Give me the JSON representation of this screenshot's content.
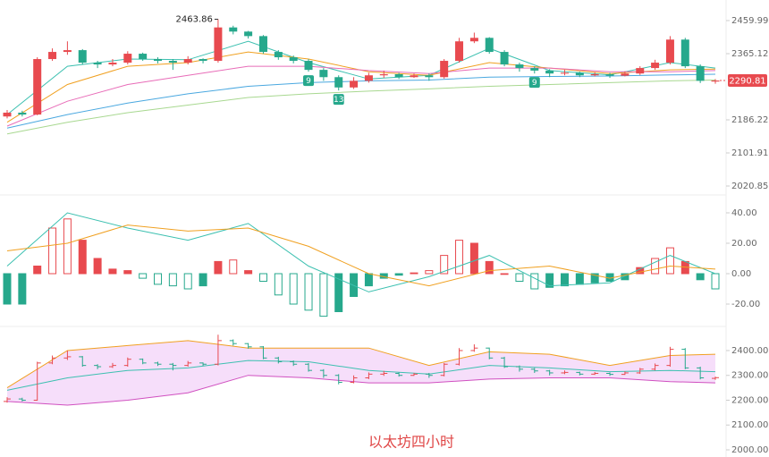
{
  "chart_data": [
    {
      "type": "candlestick",
      "log": true,
      "up_color": "#e84a4f",
      "down_color": "#26a88c",
      "open": [
        2195,
        2205,
        2200,
        2350,
        2370,
        2375,
        2340,
        2335,
        2340,
        2365,
        2350,
        2345,
        2340,
        2350,
        2345,
        2440,
        2428,
        2415,
        2370,
        2355,
        2345,
        2320,
        2300,
        2272,
        2290,
        2305,
        2308,
        2300,
        2305,
        2300,
        2345,
        2400,
        2410,
        2370,
        2335,
        2325,
        2318,
        2310,
        2312,
        2305,
        2308,
        2304,
        2310,
        2325,
        2340,
        2405,
        2330,
        2288
      ],
      "high": [
        2212,
        2210,
        2355,
        2380,
        2400,
        2378,
        2345,
        2350,
        2372,
        2368,
        2355,
        2350,
        2358,
        2352,
        2463.86,
        2445,
        2430,
        2418,
        2375,
        2360,
        2350,
        2325,
        2305,
        2300,
        2312,
        2318,
        2312,
        2310,
        2310,
        2350,
        2410,
        2425,
        2412,
        2375,
        2340,
        2330,
        2322,
        2320,
        2315,
        2314,
        2312,
        2316,
        2330,
        2348,
        2415,
        2410,
        2335,
        2295
      ],
      "low": [
        2190,
        2195,
        2198,
        2345,
        2362,
        2335,
        2325,
        2330,
        2335,
        2345,
        2338,
        2320,
        2335,
        2338,
        2340,
        2420,
        2408,
        2365,
        2348,
        2338,
        2315,
        2290,
        2264,
        2268,
        2285,
        2298,
        2295,
        2298,
        2290,
        2296,
        2340,
        2395,
        2365,
        2330,
        2315,
        2310,
        2300,
        2305,
        2300,
        2302,
        2298,
        2302,
        2306,
        2320,
        2335,
        2325,
        2284,
        2282
      ],
      "close": [
        2205,
        2200,
        2350,
        2370,
        2375,
        2340,
        2335,
        2340,
        2365,
        2350,
        2345,
        2340,
        2350,
        2345,
        2440,
        2428,
        2415,
        2370,
        2355,
        2345,
        2320,
        2300,
        2272,
        2290,
        2305,
        2308,
        2300,
        2305,
        2300,
        2345,
        2400,
        2410,
        2370,
        2335,
        2325,
        2318,
        2310,
        2312,
        2305,
        2308,
        2304,
        2310,
        2325,
        2340,
        2405,
        2330,
        2290,
        2290.81
      ],
      "lines": [
        {
          "color": "#3cc0b0",
          "x": [
            0,
            4,
            8,
            12,
            16,
            20,
            24,
            28,
            32,
            36,
            40,
            44,
            47
          ],
          "values": [
            2200,
            2330,
            2350,
            2348,
            2400,
            2340,
            2295,
            2305,
            2380,
            2318,
            2306,
            2340,
            2325
          ]
        },
        {
          "color": "#f0a020",
          "x": [
            0,
            4,
            8,
            12,
            16,
            20,
            24,
            28,
            32,
            36,
            40,
            44,
            47
          ],
          "values": [
            2180,
            2280,
            2330,
            2340,
            2370,
            2350,
            2315,
            2305,
            2340,
            2325,
            2310,
            2320,
            2322
          ]
        },
        {
          "color": "#e86cb8",
          "x": [
            0,
            4,
            8,
            12,
            16,
            20,
            24,
            28,
            32,
            36,
            40,
            44,
            47
          ],
          "values": [
            2170,
            2235,
            2280,
            2305,
            2330,
            2330,
            2318,
            2310,
            2325,
            2325,
            2315,
            2315,
            2318
          ]
        },
        {
          "color": "#4aa8e0",
          "x": [
            0,
            4,
            8,
            12,
            16,
            20,
            24,
            28,
            32,
            36,
            40,
            44,
            47
          ],
          "values": [
            2165,
            2200,
            2230,
            2255,
            2275,
            2285,
            2290,
            2292,
            2300,
            2302,
            2303,
            2306,
            2308
          ]
        },
        {
          "color": "#a8d890",
          "x": [
            0,
            4,
            8,
            12,
            16,
            20,
            24,
            28,
            32,
            36,
            40,
            44,
            47
          ],
          "values": [
            2150,
            2180,
            2205,
            2225,
            2245,
            2255,
            2262,
            2268,
            2275,
            2280,
            2285,
            2290,
            2292
          ]
        }
      ],
      "annotations": [
        {
          "text": "9",
          "x": 20
        },
        {
          "text": "13",
          "x": 22
        },
        {
          "text": "9",
          "x": 35
        }
      ],
      "ylim": [
        2020.85,
        2459.99
      ],
      "yticks": [
        2459.99,
        2365.12,
        2186.22,
        2101.91,
        2020.85
      ]
    },
    {
      "type": "macd",
      "up_color": "#e84a4f",
      "down_color": "#26a88c",
      "values": [
        -20,
        -20,
        5,
        30,
        36,
        22,
        10,
        3,
        2,
        -3,
        -7,
        -8,
        -10,
        -8,
        8,
        9,
        2,
        -5,
        -14,
        -20,
        -24,
        -28,
        -25,
        -15,
        -8,
        -3,
        -1,
        0.5,
        2,
        12,
        22,
        20,
        8,
        0,
        -5,
        -10,
        -9,
        -8,
        -7,
        -6,
        -5,
        -4,
        4,
        10,
        17,
        8,
        -4,
        -10
      ],
      "lines": [
        {
          "color": "#3cc0b0",
          "x": [
            0,
            4,
            8,
            12,
            16,
            20,
            24,
            28,
            32,
            36,
            40,
            44,
            47
          ],
          "values": [
            5,
            40,
            30,
            22,
            33,
            5,
            -12,
            -2,
            12,
            -8,
            -6,
            12,
            0
          ]
        },
        {
          "color": "#f0a020",
          "x": [
            0,
            4,
            8,
            12,
            16,
            20,
            24,
            28,
            32,
            36,
            40,
            44,
            47
          ],
          "values": [
            15,
            20,
            32,
            28,
            30,
            18,
            0,
            -8,
            2,
            5,
            -3,
            5,
            3
          ]
        }
      ],
      "ylim": [
        -30,
        45
      ],
      "yticks": [
        {
          "value": 40,
          "label": "40.00"
        },
        {
          "value": 20,
          "label": "20.00"
        },
        {
          "value": 0,
          "label": "0.00"
        },
        {
          "value": -20,
          "label": "-20.00"
        }
      ]
    },
    {
      "type": "bollinger",
      "fill": "#f6defa",
      "lines": [
        {
          "color": "#f0a020",
          "x": [
            0,
            4,
            8,
            12,
            16,
            20,
            24,
            28,
            32,
            36,
            40,
            44,
            47
          ],
          "values": [
            2250,
            2400,
            2420,
            2440,
            2410,
            2410,
            2410,
            2340,
            2395,
            2385,
            2340,
            2380,
            2385
          ]
        },
        {
          "color": "#3cc0b0",
          "x": [
            0,
            4,
            8,
            12,
            16,
            20,
            24,
            28,
            32,
            36,
            40,
            44,
            47
          ],
          "values": [
            2240,
            2290,
            2320,
            2330,
            2360,
            2355,
            2320,
            2305,
            2340,
            2330,
            2315,
            2320,
            2315
          ]
        },
        {
          "color": "#d050c0",
          "x": [
            0,
            4,
            8,
            12,
            16,
            20,
            24,
            28,
            32,
            36,
            40,
            44,
            47
          ],
          "values": [
            2195,
            2180,
            2200,
            2230,
            2300,
            2290,
            2270,
            2270,
            2285,
            2290,
            2290,
            2275,
            2270
          ]
        }
      ],
      "ylim": [
        2000,
        2450
      ],
      "yticks": [
        {
          "value": 2400,
          "label": "2400.00"
        },
        {
          "value": 2300,
          "label": "2300.00"
        },
        {
          "value": 2200,
          "label": "2200.00"
        },
        {
          "value": 2100,
          "label": "2100.00"
        },
        {
          "value": 2000,
          "label": "2000.00"
        }
      ]
    }
  ],
  "caption": "以太坊四小时"
}
